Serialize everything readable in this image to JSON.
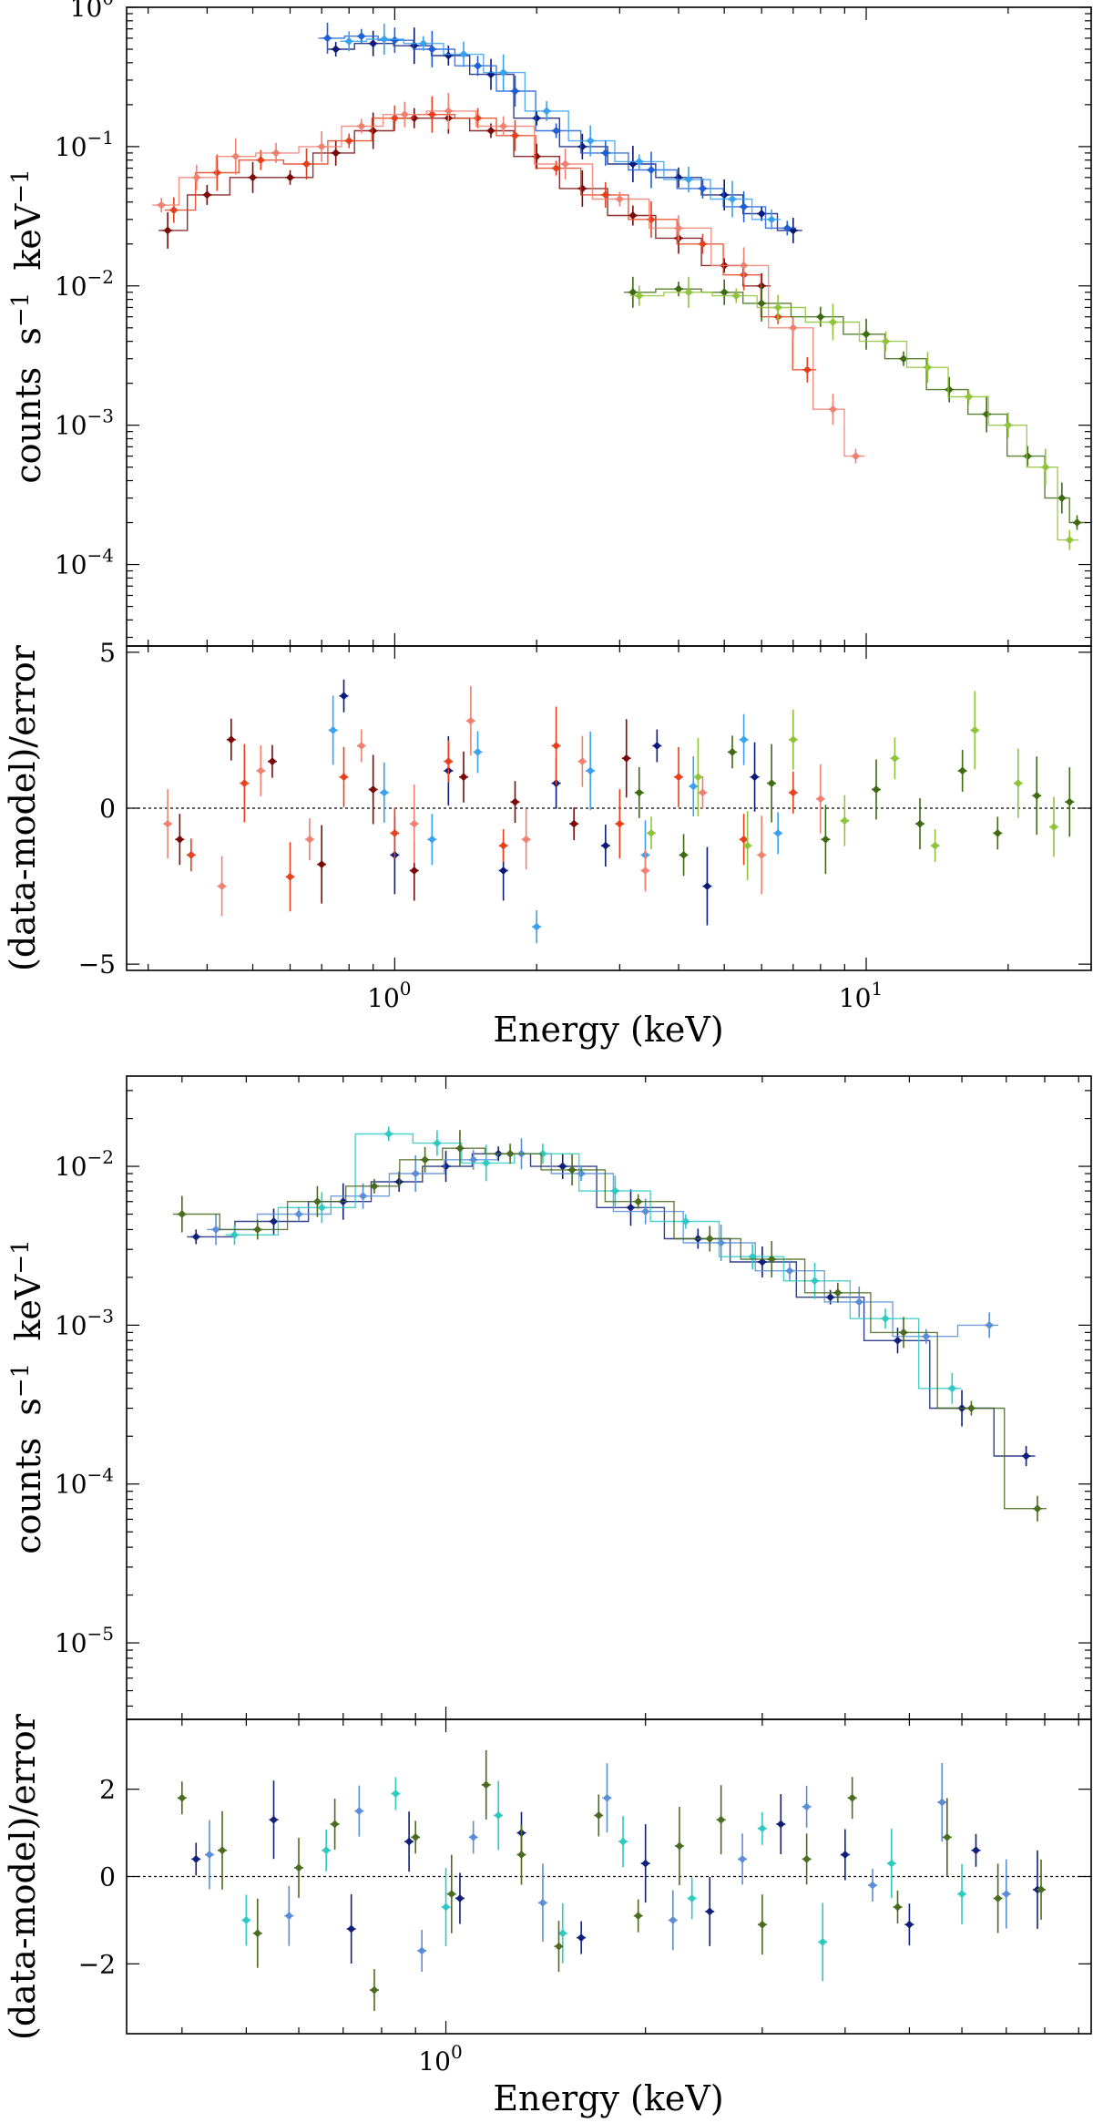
{
  "chart_data": [
    {
      "type": "scatter",
      "panel": "top-spectrum",
      "scale": "log-log",
      "xlabel": "",
      "ylabel": "counts s^-1 keV^-1",
      "xlim": [
        0.27,
        30
      ],
      "ylim": [
        2.6e-05,
        1.0
      ],
      "xticks": [
        {
          "value": 1,
          "mantissa": "10",
          "exponent": "0"
        },
        {
          "value": 10,
          "mantissa": "10",
          "exponent": "1"
        }
      ],
      "yticks": [
        {
          "value": 1,
          "mantissa": "10",
          "exponent": "0"
        },
        {
          "value": 0.1,
          "mantissa": "10",
          "exponent": "−1"
        },
        {
          "value": 0.01,
          "mantissa": "10",
          "exponent": "−2"
        },
        {
          "value": 0.001,
          "mantissa": "10",
          "exponent": "−3"
        },
        {
          "value": 0.0001,
          "mantissa": "10",
          "exponent": "−4"
        }
      ],
      "series": [
        {
          "name": "blue-dark",
          "color": "#0b1a7a",
          "x": [
            0.75,
            0.9,
            1.1,
            1.3,
            1.6,
            2.0,
            2.5,
            3.2,
            4.0,
            5.0,
            6.0,
            7.0
          ],
          "y": [
            0.5,
            0.55,
            0.53,
            0.45,
            0.33,
            0.16,
            0.1,
            0.075,
            0.06,
            0.045,
            0.033,
            0.025
          ]
        },
        {
          "name": "blue-mid",
          "color": "#1f5fd6",
          "x": [
            0.72,
            0.85,
            1.0,
            1.2,
            1.5,
            1.8,
            2.2,
            2.8,
            3.5,
            4.5,
            5.5,
            6.8
          ],
          "y": [
            0.6,
            0.62,
            0.58,
            0.5,
            0.38,
            0.25,
            0.13,
            0.09,
            0.068,
            0.05,
            0.037,
            0.026
          ]
        },
        {
          "name": "blue-light",
          "color": "#3aa0f0",
          "x": [
            0.8,
            0.95,
            1.15,
            1.4,
            1.7,
            2.1,
            2.6,
            3.3,
            4.2,
            5.2,
            6.3
          ],
          "y": [
            0.57,
            0.59,
            0.55,
            0.46,
            0.34,
            0.18,
            0.11,
            0.078,
            0.058,
            0.042,
            0.03
          ]
        },
        {
          "name": "red-dark",
          "color": "#7a0a0a",
          "x": [
            0.33,
            0.4,
            0.5,
            0.6,
            0.75,
            0.9,
            1.1,
            1.3,
            1.6,
            2.0,
            2.5,
            3.2,
            4.0,
            5.0,
            6.0
          ],
          "y": [
            0.025,
            0.045,
            0.06,
            0.06,
            0.09,
            0.13,
            0.16,
            0.16,
            0.13,
            0.085,
            0.05,
            0.032,
            0.022,
            0.014,
            0.01
          ]
        },
        {
          "name": "red-mid",
          "color": "#e8401c",
          "x": [
            0.34,
            0.42,
            0.52,
            0.65,
            0.8,
            1.0,
            1.2,
            1.5,
            1.8,
            2.2,
            2.8,
            3.5,
            4.5,
            5.5,
            6.5,
            7.5
          ],
          "y": [
            0.035,
            0.065,
            0.08,
            0.075,
            0.11,
            0.16,
            0.17,
            0.16,
            0.12,
            0.07,
            0.045,
            0.03,
            0.02,
            0.012,
            0.006,
            0.0025
          ]
        },
        {
          "name": "red-light",
          "color": "#f08070",
          "x": [
            0.32,
            0.38,
            0.46,
            0.56,
            0.7,
            0.85,
            1.05,
            1.3,
            1.7,
            2.3,
            3.0,
            4.0,
            5.5,
            7.0,
            8.5,
            9.5
          ],
          "y": [
            0.038,
            0.06,
            0.085,
            0.09,
            0.1,
            0.14,
            0.17,
            0.18,
            0.14,
            0.075,
            0.042,
            0.026,
            0.014,
            0.005,
            0.0013,
            0.0006
          ]
        },
        {
          "name": "green-dark",
          "color": "#3e6b10",
          "x": [
            3.2,
            4.0,
            5.0,
            6.0,
            8.0,
            10.0,
            12.0,
            15.0,
            18.0,
            22.0,
            26.0,
            28.0
          ],
          "y": [
            0.009,
            0.0095,
            0.009,
            0.0075,
            0.006,
            0.0045,
            0.003,
            0.0018,
            0.0012,
            0.0006,
            0.0003,
            0.0002
          ]
        },
        {
          "name": "green-light",
          "color": "#8fc43a",
          "x": [
            3.3,
            4.2,
            5.3,
            6.5,
            8.5,
            11.0,
            13.5,
            16.5,
            20.0,
            24.0,
            27.0
          ],
          "y": [
            0.0085,
            0.009,
            0.0085,
            0.007,
            0.0055,
            0.004,
            0.0026,
            0.0016,
            0.001,
            0.0005,
            0.00015
          ]
        }
      ]
    },
    {
      "type": "scatter",
      "panel": "top-residuals",
      "scale": "log-x",
      "xlabel": "Energy (keV)",
      "ylabel": "(data-model)/error",
      "xlim": [
        0.27,
        30
      ],
      "ylim": [
        -5.2,
        5.2
      ],
      "reference_line": 0,
      "xticks": [
        {
          "value": 1,
          "mantissa": "10",
          "exponent": "0"
        },
        {
          "value": 10,
          "mantissa": "10",
          "exponent": "1"
        }
      ],
      "yticks": [
        {
          "value": 5,
          "label": "5"
        },
        {
          "value": 0,
          "label": "0"
        },
        {
          "value": -5,
          "label": "−5"
        }
      ],
      "series": [
        {
          "name": "blue-dark",
          "color": "#0b1a7a",
          "x": [
            0.78,
            1.0,
            1.3,
            1.7,
            2.2,
            2.8,
            3.6,
            4.6,
            5.8
          ],
          "y": [
            3.6,
            -1.5,
            1.2,
            -2.0,
            0.8,
            -1.2,
            2.0,
            -2.5,
            1.0
          ]
        },
        {
          "name": "blue-light",
          "color": "#3aa0f0",
          "x": [
            0.74,
            0.95,
            1.2,
            1.5,
            2.0,
            2.6,
            3.4,
            4.3,
            5.5,
            6.5
          ],
          "y": [
            2.5,
            0.5,
            -1.0,
            1.8,
            -3.8,
            1.2,
            -1.5,
            0.7,
            2.2,
            -0.8
          ]
        },
        {
          "name": "red-dark",
          "color": "#7a0a0a",
          "x": [
            0.35,
            0.45,
            0.55,
            0.7,
            0.9,
            1.1,
            1.4,
            1.8,
            2.4,
            3.1
          ],
          "y": [
            -1.0,
            2.2,
            1.5,
            -1.8,
            0.6,
            -2.0,
            1.0,
            0.2,
            -0.5,
            1.6
          ]
        },
        {
          "name": "red-mid",
          "color": "#e8401c",
          "x": [
            0.37,
            0.48,
            0.6,
            0.78,
            1.0,
            1.3,
            1.7,
            2.2,
            3.0,
            4.0,
            5.5,
            7.0
          ],
          "y": [
            -1.5,
            0.8,
            -2.2,
            1.0,
            -0.8,
            1.5,
            -1.2,
            2.0,
            -0.5,
            1.0,
            -1.0,
            0.5
          ]
        },
        {
          "name": "red-light",
          "color": "#f08070",
          "x": [
            0.33,
            0.43,
            0.52,
            0.66,
            0.85,
            1.1,
            1.45,
            1.9,
            2.5,
            3.4,
            4.5,
            6.0,
            8.0
          ],
          "y": [
            -0.5,
            -2.5,
            1.2,
            -1.0,
            2.0,
            -0.5,
            2.8,
            -1.0,
            1.5,
            -2.0,
            0.5,
            -1.5,
            0.3
          ]
        },
        {
          "name": "green-dark",
          "color": "#3e6b10",
          "x": [
            3.3,
            4.1,
            5.2,
            6.3,
            8.2,
            10.5,
            13.0,
            16.0,
            19.0,
            23.0,
            27.0
          ],
          "y": [
            0.5,
            -1.5,
            1.8,
            0.8,
            -1.0,
            0.6,
            -0.5,
            1.2,
            -0.8,
            0.4,
            0.2
          ]
        },
        {
          "name": "green-light",
          "color": "#8fc43a",
          "x": [
            3.5,
            4.4,
            5.6,
            7.0,
            9.0,
            11.5,
            14.0,
            17.0,
            21.0,
            25.0
          ],
          "y": [
            -0.8,
            1.0,
            -1.2,
            2.2,
            -0.4,
            1.6,
            -1.2,
            2.5,
            0.8,
            -0.6
          ]
        }
      ]
    },
    {
      "type": "scatter",
      "panel": "bottom-spectrum",
      "scale": "log-log",
      "xlabel": "",
      "ylabel": "counts s^-1 keV^-1",
      "xlim": [
        0.33,
        9.4
      ],
      "ylim": [
        3.3e-06,
        0.037
      ],
      "xticks": [
        {
          "value": 1,
          "mantissa": "10",
          "exponent": "0"
        }
      ],
      "yticks": [
        {
          "value": 0.01,
          "mantissa": "10",
          "exponent": "−2"
        },
        {
          "value": 0.001,
          "mantissa": "10",
          "exponent": "−3"
        },
        {
          "value": 0.0001,
          "mantissa": "10",
          "exponent": "−4"
        },
        {
          "value": 1e-05,
          "mantissa": "10",
          "exponent": "−5"
        }
      ],
      "series": [
        {
          "name": "navy",
          "color": "#10207a",
          "x": [
            0.42,
            0.55,
            0.7,
            0.85,
            1.0,
            1.2,
            1.5,
            1.9,
            2.4,
            3.0,
            3.8,
            4.8,
            6.0,
            7.5
          ],
          "y": [
            0.0036,
            0.0045,
            0.006,
            0.008,
            0.01,
            0.012,
            0.01,
            0.0055,
            0.0035,
            0.0025,
            0.0015,
            0.0008,
            0.0003,
            0.00015
          ]
        },
        {
          "name": "cornflower",
          "color": "#5b8ed6",
          "x": [
            0.45,
            0.6,
            0.75,
            0.9,
            1.1,
            1.3,
            1.6,
            2.0,
            2.6,
            3.3,
            4.2,
            5.3,
            6.6
          ],
          "y": [
            0.004,
            0.005,
            0.0065,
            0.009,
            0.011,
            0.012,
            0.009,
            0.0052,
            0.0033,
            0.0022,
            0.0014,
            0.00085,
            0.001
          ]
        },
        {
          "name": "turquoise",
          "color": "#2ec9c0",
          "x": [
            0.48,
            0.65,
            0.82,
            0.97,
            1.15,
            1.4,
            1.8,
            2.3,
            2.9,
            3.6,
            4.6,
            5.8
          ],
          "y": [
            0.0037,
            0.0055,
            0.016,
            0.014,
            0.0105,
            0.012,
            0.007,
            0.0045,
            0.0027,
            0.0019,
            0.0011,
            0.0004
          ]
        },
        {
          "name": "forest",
          "color": "#4a6b20",
          "x": [
            0.4,
            0.52,
            0.64,
            0.78,
            0.93,
            1.05,
            1.25,
            1.55,
            1.95,
            2.5,
            3.1,
            3.9,
            4.9,
            6.2,
            7.8
          ],
          "y": [
            0.005,
            0.004,
            0.006,
            0.0075,
            0.011,
            0.013,
            0.012,
            0.0095,
            0.006,
            0.0035,
            0.0026,
            0.0016,
            0.0009,
            0.0003,
            7e-05
          ]
        }
      ]
    },
    {
      "type": "scatter",
      "panel": "bottom-residuals",
      "scale": "log-x",
      "xlabel": "Energy (keV)",
      "ylabel": "(data-model)/error",
      "xlim": [
        0.33,
        9.4
      ],
      "ylim": [
        -3.6,
        3.6
      ],
      "reference_line": 0,
      "xticks": [
        {
          "value": 1,
          "mantissa": "10",
          "exponent": "0"
        }
      ],
      "yticks": [
        {
          "value": 2,
          "label": "2"
        },
        {
          "value": 0,
          "label": "0"
        },
        {
          "value": -2,
          "label": "−2"
        }
      ],
      "series": [
        {
          "name": "navy",
          "color": "#10207a",
          "x": [
            0.42,
            0.55,
            0.72,
            0.88,
            1.05,
            1.3,
            1.6,
            2.0,
            2.5,
            3.2,
            4.0,
            5.0,
            6.3,
            7.8
          ],
          "y": [
            0.4,
            1.3,
            -1.2,
            0.8,
            -0.5,
            1.0,
            -1.4,
            0.3,
            -0.8,
            1.2,
            0.5,
            -1.1,
            0.6,
            -0.3
          ]
        },
        {
          "name": "cornflower",
          "color": "#5b8ed6",
          "x": [
            0.44,
            0.58,
            0.74,
            0.92,
            1.1,
            1.4,
            1.75,
            2.2,
            2.8,
            3.5,
            4.4,
            5.6,
            7.0
          ],
          "y": [
            0.5,
            -0.9,
            1.5,
            -1.7,
            0.9,
            -0.6,
            1.8,
            -1.0,
            0.4,
            1.6,
            -0.2,
            1.7,
            -0.4
          ]
        },
        {
          "name": "turquoise",
          "color": "#2ec9c0",
          "x": [
            0.5,
            0.66,
            0.84,
            1.0,
            1.2,
            1.5,
            1.85,
            2.35,
            3.0,
            3.7,
            4.7,
            6.0
          ],
          "y": [
            -1.0,
            0.6,
            1.9,
            -0.7,
            1.4,
            -1.3,
            0.8,
            -0.5,
            1.1,
            -1.5,
            0.3,
            -0.4
          ]
        },
        {
          "name": "forest",
          "color": "#4a6b20",
          "x": [
            0.4,
            0.46,
            0.52,
            0.6,
            0.68,
            0.78,
            0.9,
            1.02,
            1.15,
            1.3,
            1.48,
            1.7,
            1.95,
            2.25,
            2.6,
            3.0,
            3.5,
            4.1,
            4.8,
            5.7,
            6.8,
            7.9
          ],
          "y": [
            1.8,
            0.6,
            -1.3,
            0.2,
            1.2,
            -2.6,
            0.9,
            -0.4,
            2.1,
            0.5,
            -1.6,
            1.4,
            -0.9,
            0.7,
            1.3,
            -1.1,
            0.4,
            1.8,
            -0.7,
            0.9,
            -0.5,
            -0.3
          ]
        }
      ]
    }
  ]
}
